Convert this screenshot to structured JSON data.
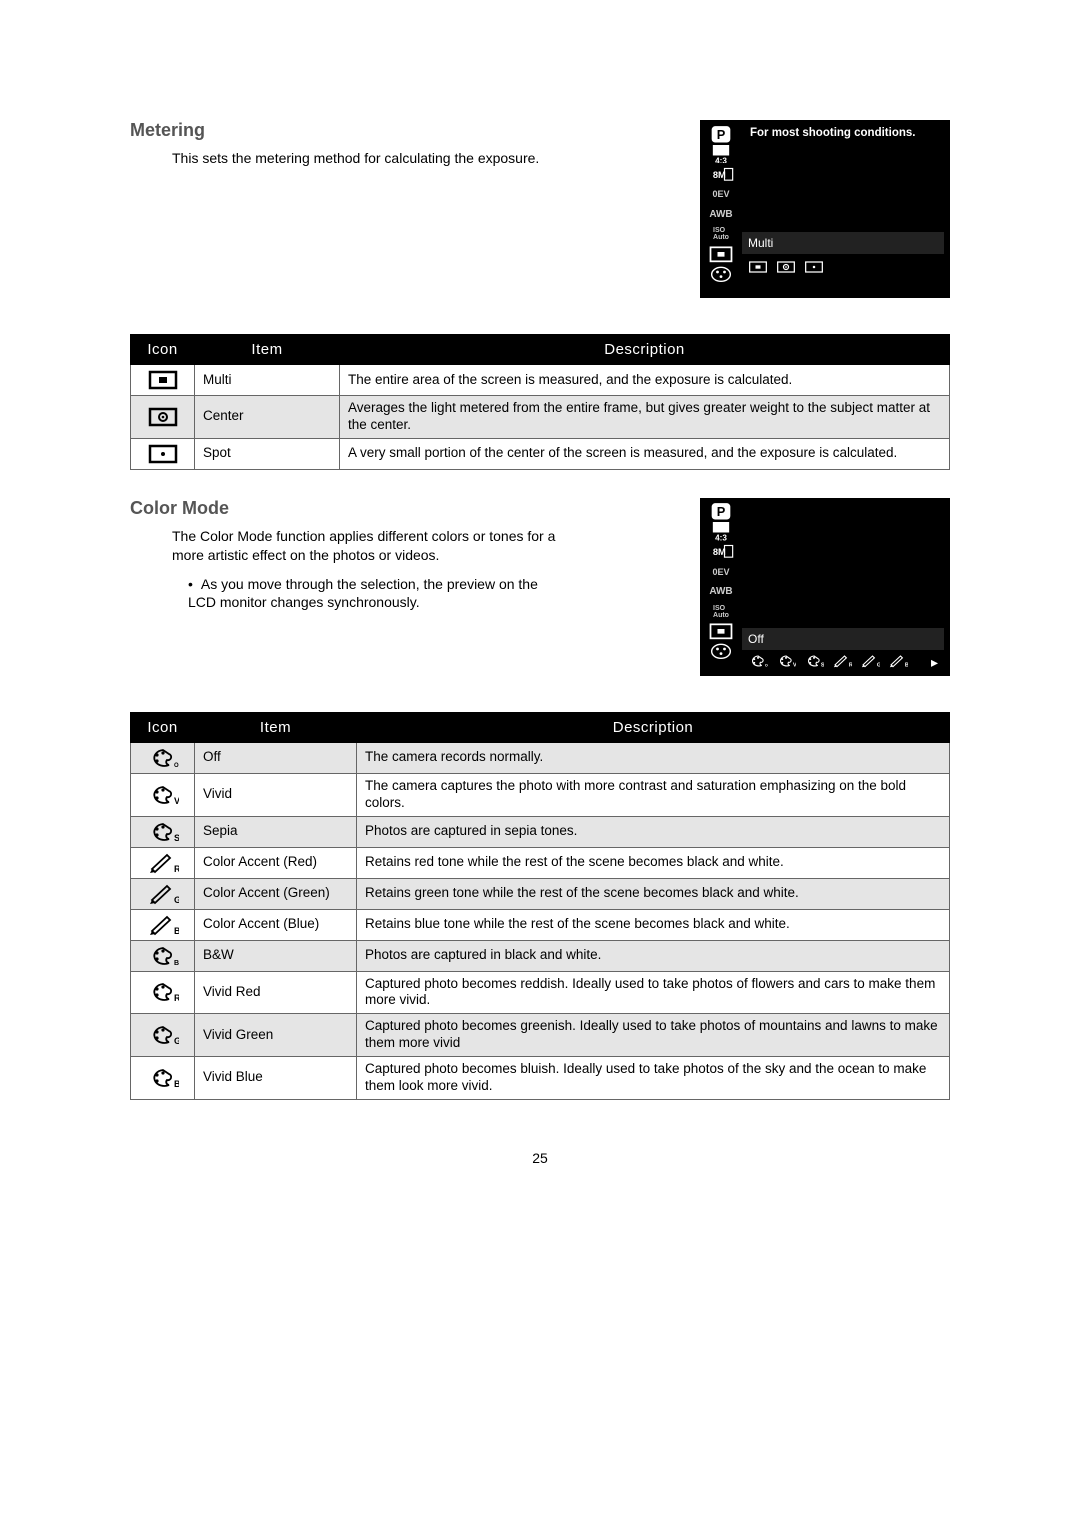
{
  "page_number": "25",
  "metering": {
    "title": "Metering",
    "body": "This sets the metering method for calculating the exposure.",
    "lcd": {
      "hint": "For most shooting conditions.",
      "mode_label": "Multi",
      "side_labels": [
        "P",
        "4:3",
        "8M",
        "0EV",
        "AWB",
        "ISO Auto",
        "",
        ""
      ]
    },
    "table": {
      "headers": [
        "Icon",
        "Item",
        "Description"
      ],
      "rows": [
        {
          "item": "Multi",
          "desc": "The entire area of the screen is measured, and the exposure is calculated.",
          "shade": false
        },
        {
          "item": "Center",
          "desc": "Averages the light metered from the entire frame, but gives greater weight to the subject matter at the center.",
          "shade": true
        },
        {
          "item": "Spot",
          "desc": "A very small portion of the center of the screen is measured, and the exposure is calculated.",
          "shade": false
        }
      ]
    }
  },
  "colormode": {
    "title": "Color Mode",
    "body": "The Color Mode function applies different colors or tones for a more artistic effect on the photos or videos.",
    "bullet": "As you move through the selection, the preview on the LCD monitor changes synchronously.",
    "lcd": {
      "mode_label": "Off"
    },
    "table": {
      "headers": [
        "Icon",
        "Item",
        "Description"
      ],
      "rows": [
        {
          "item": "Off",
          "desc": "The camera records normally.",
          "shade": true
        },
        {
          "item": "Vivid",
          "desc": "The camera captures the photo with more contrast and saturation emphasizing on the bold colors.",
          "shade": false
        },
        {
          "item": "Sepia",
          "desc": "Photos are captured in sepia tones.",
          "shade": true
        },
        {
          "item": "Color Accent (Red)",
          "desc": "Retains red tone while the rest of the scene becomes black and white.",
          "shade": false
        },
        {
          "item": "Color Accent (Green)",
          "desc": "Retains green tone while the rest of the scene becomes black and white.",
          "shade": true
        },
        {
          "item": "Color Accent (Blue)",
          "desc": "Retains blue tone while the rest of the scene becomes black and white.",
          "shade": false
        },
        {
          "item": "B&W",
          "desc": "Photos are captured in black and white.",
          "shade": true
        },
        {
          "item": "Vivid Red",
          "desc": "Captured photo becomes reddish. Ideally used to take photos of flowers and cars to make them more vivid.",
          "shade": false
        },
        {
          "item": "Vivid Green",
          "desc": "Captured photo becomes greenish. Ideally used to take photos of mountains and lawns to make them more vivid",
          "shade": true
        },
        {
          "item": "Vivid Blue",
          "desc": "Captured photo becomes bluish. Ideally used to take photos of the sky and the ocean to make them look more vivid.",
          "shade": false
        }
      ]
    }
  },
  "icons": {
    "metering": [
      "multi",
      "center",
      "spot"
    ],
    "colormode": [
      "palette-off",
      "palette-v",
      "palette-s",
      "brush-r",
      "brush-g",
      "brush-b",
      "palette-bw",
      "palette-vr",
      "palette-vg",
      "palette-vb"
    ]
  }
}
